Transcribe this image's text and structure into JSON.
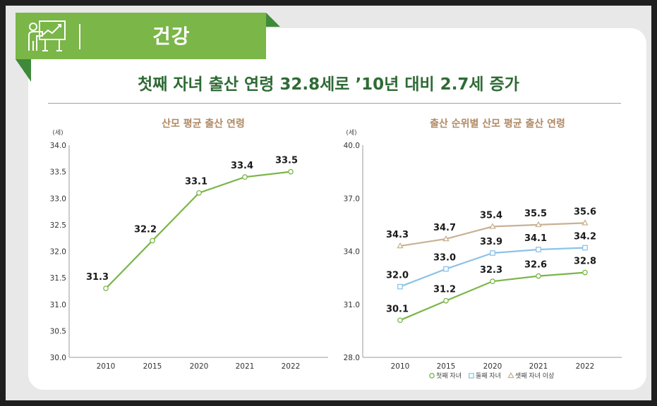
{
  "banner": {
    "title": "건강",
    "icon": "presentation-chart-icon"
  },
  "headline": "첫째 자녀 출산 연령 32.8세로 ’10년 대비 2.7세 증가",
  "colors": {
    "green": "#7ab648",
    "dark_green": "#2e6b35",
    "blue": "#8cc3e8",
    "tan": "#c9b193"
  },
  "chart_data": [
    {
      "type": "line",
      "title": "산모 평균 출산 연령",
      "unit": "(세)",
      "x": [
        "2010",
        "2015",
        "2020",
        "2021",
        "2022"
      ],
      "ylim": [
        30.0,
        34.0
      ],
      "yticks": [
        "30.0",
        "30.5",
        "31.0",
        "31.5",
        "32.0",
        "32.5",
        "33.0",
        "33.5",
        "34.0"
      ],
      "series": [
        {
          "values": [
            31.3,
            32.2,
            33.1,
            33.4,
            33.5
          ],
          "labels": [
            "31.3",
            "32.2",
            "33.1",
            "33.4",
            "33.5"
          ],
          "color": "#7ab648",
          "marker": "circle"
        }
      ]
    },
    {
      "type": "line",
      "title": "출산 순위별 산모 평균 출산 연령",
      "unit": "(세)",
      "x": [
        "2010",
        "2015",
        "2020",
        "2021",
        "2022"
      ],
      "ylim": [
        28.0,
        40.0
      ],
      "yticks": [
        "28.0",
        "31.0",
        "34.0",
        "37.0",
        "40.0"
      ],
      "legend": "bottom",
      "series": [
        {
          "name": "첫째 자녀",
          "values": [
            30.1,
            31.2,
            32.3,
            32.6,
            32.8
          ],
          "labels": [
            "30.1",
            "31.2",
            "32.3",
            "32.6",
            "32.8"
          ],
          "color": "#7ab648",
          "marker": "circle"
        },
        {
          "name": "둘째 자녀",
          "values": [
            32.0,
            33.0,
            33.9,
            34.1,
            34.2
          ],
          "labels": [
            "32.0",
            "33.0",
            "33.9",
            "34.1",
            "34.2"
          ],
          "color": "#8cc3e8",
          "marker": "square"
        },
        {
          "name": "셋째 자녀 이상",
          "values": [
            34.3,
            34.7,
            35.4,
            35.5,
            35.6
          ],
          "labels": [
            "34.3",
            "34.7",
            "35.4",
            "35.5",
            "35.6"
          ],
          "color": "#c9b193",
          "marker": "triangle"
        }
      ]
    }
  ]
}
